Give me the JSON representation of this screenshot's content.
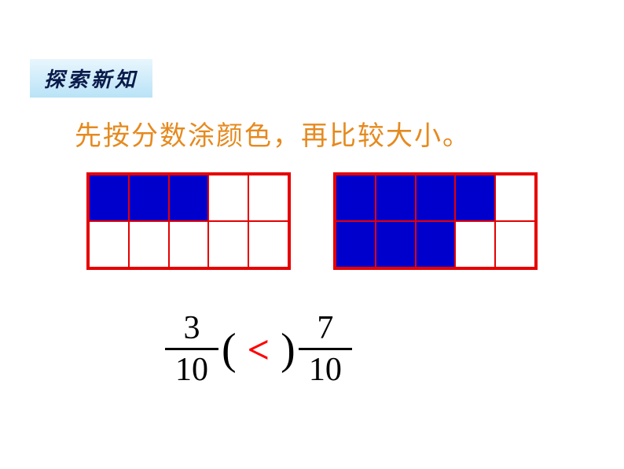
{
  "badge": {
    "text": "探索新知",
    "background_gradient_top": "#e8f6fd",
    "background_gradient_bottom": "#b9e3f7",
    "text_color": "#0a1a4a",
    "fontsize": 26
  },
  "instruction": {
    "text": "先按分数涂颜色，再比较大小。",
    "color": "#e58a1f",
    "fontsize": 34
  },
  "grids": {
    "border_color": "#e60000",
    "fill_color": "#0000cc",
    "empty_color": "#ffffff",
    "cols": 5,
    "rows": 2,
    "grid_a": {
      "filled_cells": [
        0,
        1,
        2
      ],
      "total": 10
    },
    "grid_b": {
      "filled_cells": [
        0,
        1,
        2,
        3,
        5,
        6,
        7
      ],
      "total": 10
    }
  },
  "equation": {
    "left": {
      "numerator": "3",
      "denominator": "10"
    },
    "operator": "<",
    "right": {
      "numerator": "7",
      "denominator": "10"
    },
    "fraction_color": "#000000",
    "operator_color": "#ff0000",
    "paren_color": "#000000",
    "fraction_fontsize": 42,
    "operator_fontsize": 50,
    "paren_fontsize": 56
  }
}
